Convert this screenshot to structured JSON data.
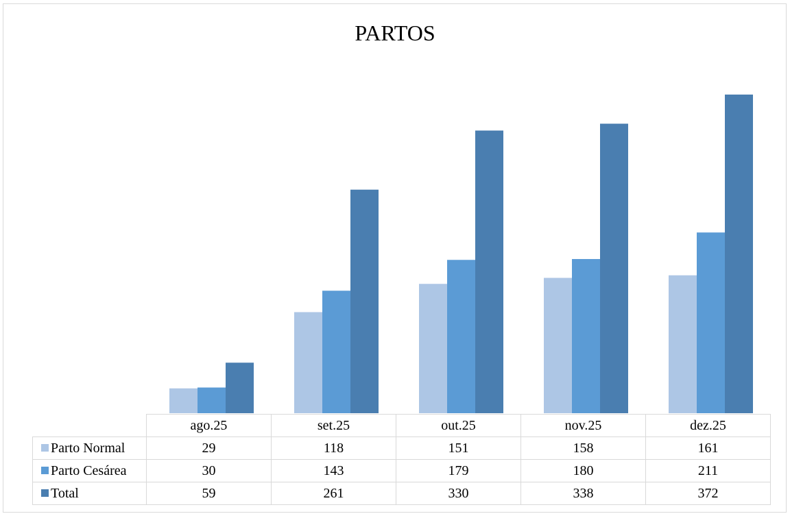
{
  "chart_data": {
    "type": "bar",
    "title": "PARTOS",
    "categories": [
      "ago.25",
      "set.25",
      "out.25",
      "nov.25",
      "dez.25"
    ],
    "series": [
      {
        "name": "Parto Normal",
        "color": "#adc6e5",
        "values": [
          29,
          118,
          151,
          158,
          161
        ]
      },
      {
        "name": "Parto Cesárea",
        "color": "#5b9bd5",
        "values": [
          30,
          143,
          179,
          180,
          211
        ]
      },
      {
        "name": "Total",
        "color": "#4a7eb0",
        "values": [
          59,
          261,
          330,
          338,
          372
        ]
      }
    ],
    "ylim": [
      0,
      400
    ],
    "grid": false,
    "legend": "data-table"
  }
}
